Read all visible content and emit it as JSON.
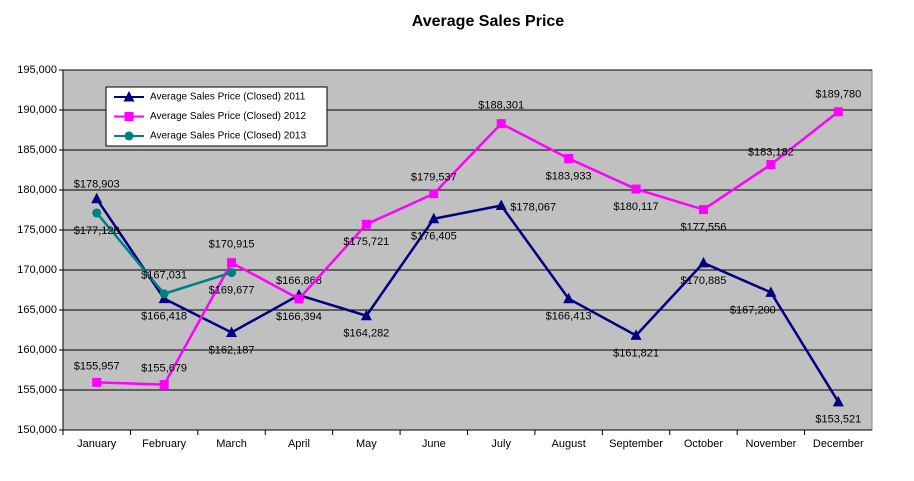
{
  "chart_data": {
    "type": "line",
    "title": "Average Sales Price",
    "categories": [
      "January",
      "February",
      "March",
      "April",
      "May",
      "June",
      "July",
      "August",
      "September",
      "October",
      "November",
      "December"
    ],
    "series": [
      {
        "name": "Average Sales Price (Closed)  2011",
        "color": "#000080",
        "marker": "triangle",
        "values": [
          178903,
          166418,
          162187,
          166868,
          164282,
          176405,
          178067,
          166413,
          161821,
          170885,
          167200,
          153521
        ],
        "value_labels": [
          "$178,903",
          "$166,418",
          "$162,187",
          "$166,868",
          "$164,282",
          "$176,405",
          "$178,067",
          "$166,413",
          "$161,821",
          "$170,885",
          "$167,200",
          "$153,521"
        ]
      },
      {
        "name": "Average Sales Price (Closed)  2012",
        "color": "#ff00ff",
        "marker": "square",
        "values": [
          155957,
          155679,
          170915,
          166394,
          175721,
          179537,
          188301,
          183933,
          180117,
          177556,
          183182,
          189780
        ],
        "value_labels": [
          "$155,957",
          "$155,679",
          "$170,915",
          "$166,394",
          "$175,721",
          "$179,537",
          "$188,301",
          "$183,933",
          "$180,117",
          "$177,556",
          "$183,182",
          "$189,780"
        ]
      },
      {
        "name": "Average Sales Price (Closed)  2013",
        "color": "#008080",
        "marker": "circle",
        "values": [
          177128,
          167031,
          169677,
          null,
          null,
          null,
          null,
          null,
          null,
          null,
          null,
          null
        ],
        "value_labels": [
          "$177,128",
          "$167,031",
          "$169,677",
          null,
          null,
          null,
          null,
          null,
          null,
          null,
          null,
          null
        ]
      }
    ],
    "ylim": [
      150000,
      195000
    ],
    "yticks": [
      {
        "value": 150000,
        "label": "150,000"
      },
      {
        "value": 155000,
        "label": "155,000"
      },
      {
        "value": 160000,
        "label": "160,000"
      },
      {
        "value": 165000,
        "label": "165,000"
      },
      {
        "value": 170000,
        "label": "170,000"
      },
      {
        "value": 175000,
        "label": "175,000"
      },
      {
        "value": 180000,
        "label": "180,000"
      },
      {
        "value": 185000,
        "label": "185,000"
      },
      {
        "value": 190000,
        "label": "190,000"
      },
      {
        "value": 195000,
        "label": "195,000"
      }
    ],
    "grid": true,
    "legend": "upper left",
    "plot_background": "#c0c0c0"
  }
}
